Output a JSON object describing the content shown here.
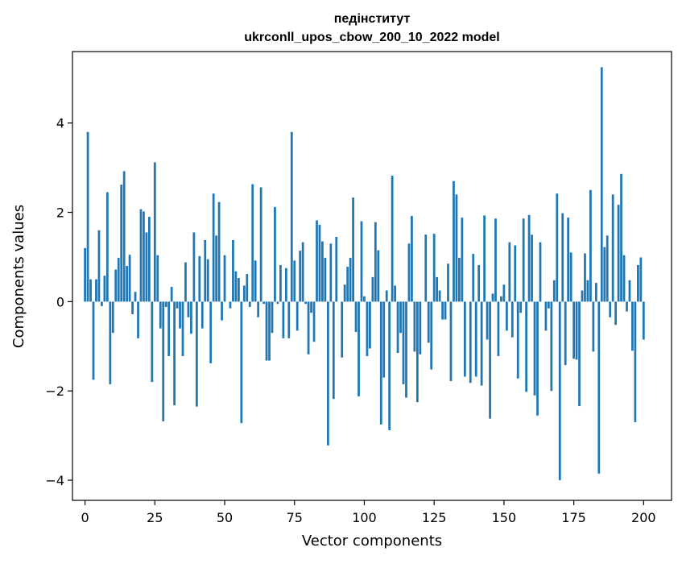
{
  "chart_data": {
    "type": "bar",
    "title": "педінститут",
    "subtitle": "ukrconll_upos_cbow_200_10_2022 model",
    "xlabel": "Vector components",
    "ylabel": "Components values",
    "xlim": [
      -4.5,
      210
    ],
    "ylim": [
      -4.45,
      5.6
    ],
    "xticks": [
      0,
      25,
      50,
      75,
      100,
      125,
      150,
      175,
      200
    ],
    "yticks": [
      -4,
      -2,
      0,
      2,
      4
    ],
    "ytick_labels": [
      "−4",
      "−2",
      "0",
      "2",
      "4"
    ],
    "grid": false,
    "bar_color": "#1f77b4",
    "values": [
      1.2,
      3.8,
      0.5,
      -1.75,
      0.5,
      1.6,
      -0.1,
      0.58,
      2.45,
      -1.85,
      -0.7,
      0.72,
      0.98,
      2.62,
      2.92,
      0.8,
      1.05,
      -0.28,
      0.22,
      -0.82,
      2.07,
      2.02,
      1.55,
      1.9,
      -1.8,
      3.12,
      1.04,
      -0.6,
      -2.68,
      -0.12,
      -1.22,
      0.33,
      -2.32,
      -0.15,
      -0.6,
      -1.22,
      0.88,
      -0.35,
      -0.72,
      1.55,
      -2.35,
      1.02,
      -0.6,
      1.38,
      0.95,
      -1.38,
      2.42,
      1.48,
      2.23,
      -0.42,
      1.04,
      0.0,
      -0.15,
      1.38,
      0.68,
      0.53,
      -2.72,
      0.36,
      0.62,
      -0.12,
      2.63,
      0.92,
      -0.35,
      2.56,
      -0.05,
      -1.32,
      -1.32,
      -0.7,
      2.12,
      -0.05,
      0.82,
      -0.82,
      0.75,
      -0.82,
      3.8,
      0.92,
      -0.65,
      1.14,
      1.33,
      -0.05,
      -1.18,
      -0.25,
      -0.9,
      1.82,
      1.72,
      1.35,
      0.98,
      -3.22,
      1.3,
      -2.18,
      1.45,
      0.0,
      -1.25,
      0.38,
      0.78,
      0.98,
      2.33,
      -0.68,
      -2.12,
      1.8,
      0.12,
      -1.22,
      -1.05,
      0.55,
      1.78,
      1.15,
      -2.75,
      -1.7,
      0.25,
      -2.88,
      2.82,
      0.36,
      -1.15,
      -0.7,
      -1.85,
      -2.15,
      1.3,
      1.92,
      -1.12,
      -2.25,
      -1.18,
      0.0,
      1.5,
      -0.92,
      -1.52,
      1.52,
      0.55,
      0.25,
      -0.4,
      -0.4,
      0.85,
      -1.78,
      2.7,
      2.4,
      0.98,
      1.88,
      -1.68,
      0.0,
      -1.82,
      1.07,
      -1.68,
      0.82,
      -1.88,
      1.93,
      -0.85,
      -2.62,
      0.18,
      1.86,
      -1.22,
      0.12,
      0.38,
      -0.65,
      1.33,
      -0.8,
      1.26,
      -1.72,
      -0.25,
      1.86,
      -2.02,
      1.94,
      1.5,
      -2.1,
      -2.55,
      1.33,
      0.0,
      -0.65,
      -0.15,
      -2.0,
      0.48,
      2.42,
      -4.0,
      1.98,
      -1.42,
      1.88,
      1.1,
      -1.28,
      -1.3,
      -2.34,
      0.25,
      1.08,
      0.48,
      2.5,
      -1.12,
      0.42,
      -3.85,
      5.25,
      1.22,
      1.48,
      -0.35,
      2.4,
      -0.52,
      2.17,
      2.86,
      1.04,
      -0.22,
      0.48,
      -1.1,
      -2.7,
      0.82,
      0.99,
      -0.85
    ]
  }
}
